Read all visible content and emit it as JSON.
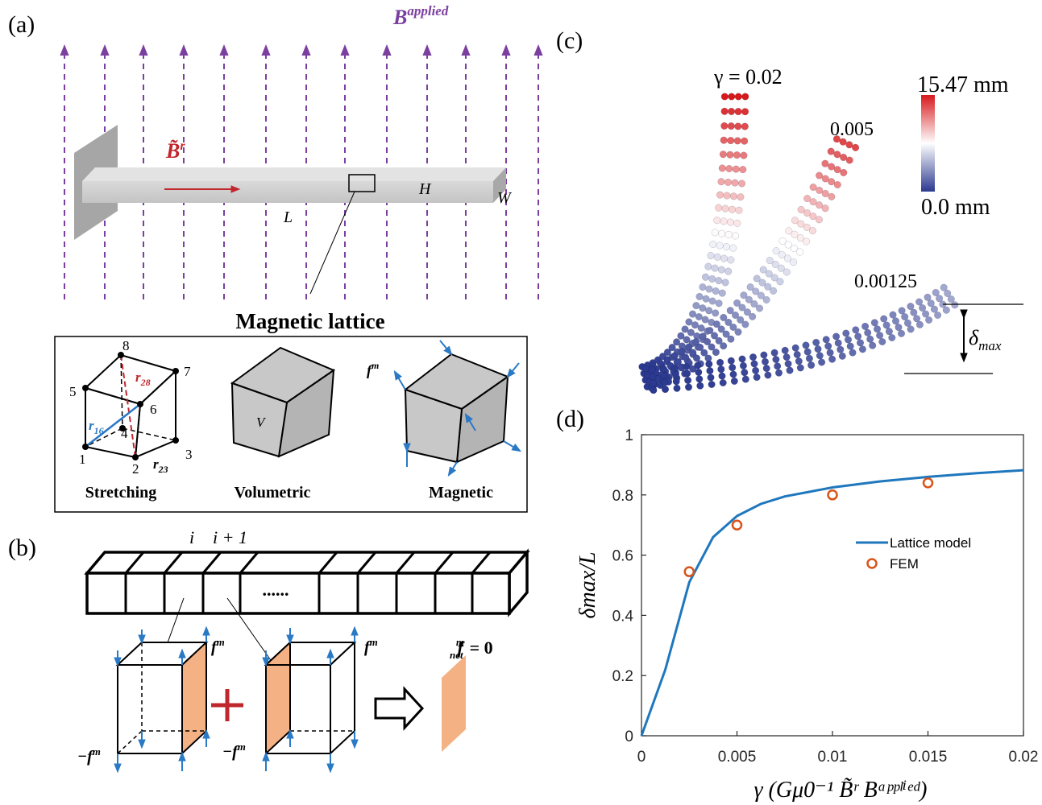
{
  "panels": {
    "a": {
      "label": "(a)",
      "field_label": "B",
      "field_sup": "applied",
      "remanence_label": "B̃",
      "remanence_sup": "r",
      "length_label": "L",
      "height_label": "H",
      "width_label": "W",
      "lattice_title": "Magnetic lattice",
      "inset": {
        "stretching": {
          "caption": "Stretching",
          "node_labels": [
            "1",
            "2",
            "3",
            "4",
            "5",
            "6",
            "7",
            "8"
          ],
          "r16": "r",
          "r16_sub": "16",
          "r28": "r",
          "r28_sub": "28",
          "r23": "r",
          "r23_sub": "23"
        },
        "volumetric": {
          "caption": "Volumetric",
          "volume_label": "V"
        },
        "magnetic": {
          "caption": "Magnetic",
          "force_label": "f",
          "force_sup": "m"
        }
      }
    },
    "b": {
      "label": "(b)",
      "index_i": "i",
      "index_i1": "i + 1",
      "ellipsis": "......",
      "force_label": "f",
      "force_sup": "m",
      "neg_force_label": "−f",
      "neg_force_sup": "m",
      "net_label": "f",
      "net_sup": "m",
      "net_sub": "net",
      "net_eq": "= 0"
    },
    "c": {
      "label": "(c)",
      "gamma_labels": [
        "γ = 0.02",
        "0.005",
        "0.00125"
      ],
      "colorbar_max": "15.47 mm",
      "colorbar_min": "0.0 mm",
      "delta_label": "δ",
      "delta_sub": "max"
    },
    "d": {
      "label": "(d)"
    }
  },
  "colors": {
    "field_arrow": "#7b3fa0",
    "remanence": "#c0272d",
    "lattice_line": "#1f77b4",
    "fem_marker": "#d95319",
    "face_fill": "#f4b183",
    "cube_gray": "#c8c8c8",
    "colormap_low": "#2b3990",
    "colormap_mid": "#ffffff",
    "colormap_high": "#d7191c"
  },
  "chart_data": {
    "type": "line",
    "xlabel": "γ (Gμ0⁻¹ B̃ʳ Bᵃᵖᵖˡⁱᵉᵈ)",
    "ylabel": "δmax/L",
    "xlim": [
      0,
      0.02
    ],
    "ylim": [
      0,
      1
    ],
    "xticks": [
      0,
      0.005,
      0.01,
      0.015,
      0.02
    ],
    "xtick_labels": [
      "0",
      "0.005",
      "0.01",
      "0.015",
      "0.02"
    ],
    "yticks": [
      0,
      0.2,
      0.4,
      0.6,
      0.8,
      1
    ],
    "ytick_labels": [
      "0",
      "0.2",
      "0.4",
      "0.6",
      "0.8",
      "1"
    ],
    "legend_position": "center-right",
    "series": [
      {
        "name": "Lattice model",
        "style": "line",
        "x": [
          0,
          0.00125,
          0.0025,
          0.00375,
          0.005,
          0.00625,
          0.0075,
          0.00875,
          0.01,
          0.0125,
          0.015,
          0.0175,
          0.02
        ],
        "y": [
          0,
          0.22,
          0.51,
          0.66,
          0.73,
          0.77,
          0.795,
          0.81,
          0.825,
          0.845,
          0.86,
          0.872,
          0.882
        ]
      },
      {
        "name": "FEM",
        "style": "marker",
        "x": [
          0.0025,
          0.005,
          0.01,
          0.015
        ],
        "y": [
          0.545,
          0.7,
          0.8,
          0.84
        ]
      }
    ]
  }
}
